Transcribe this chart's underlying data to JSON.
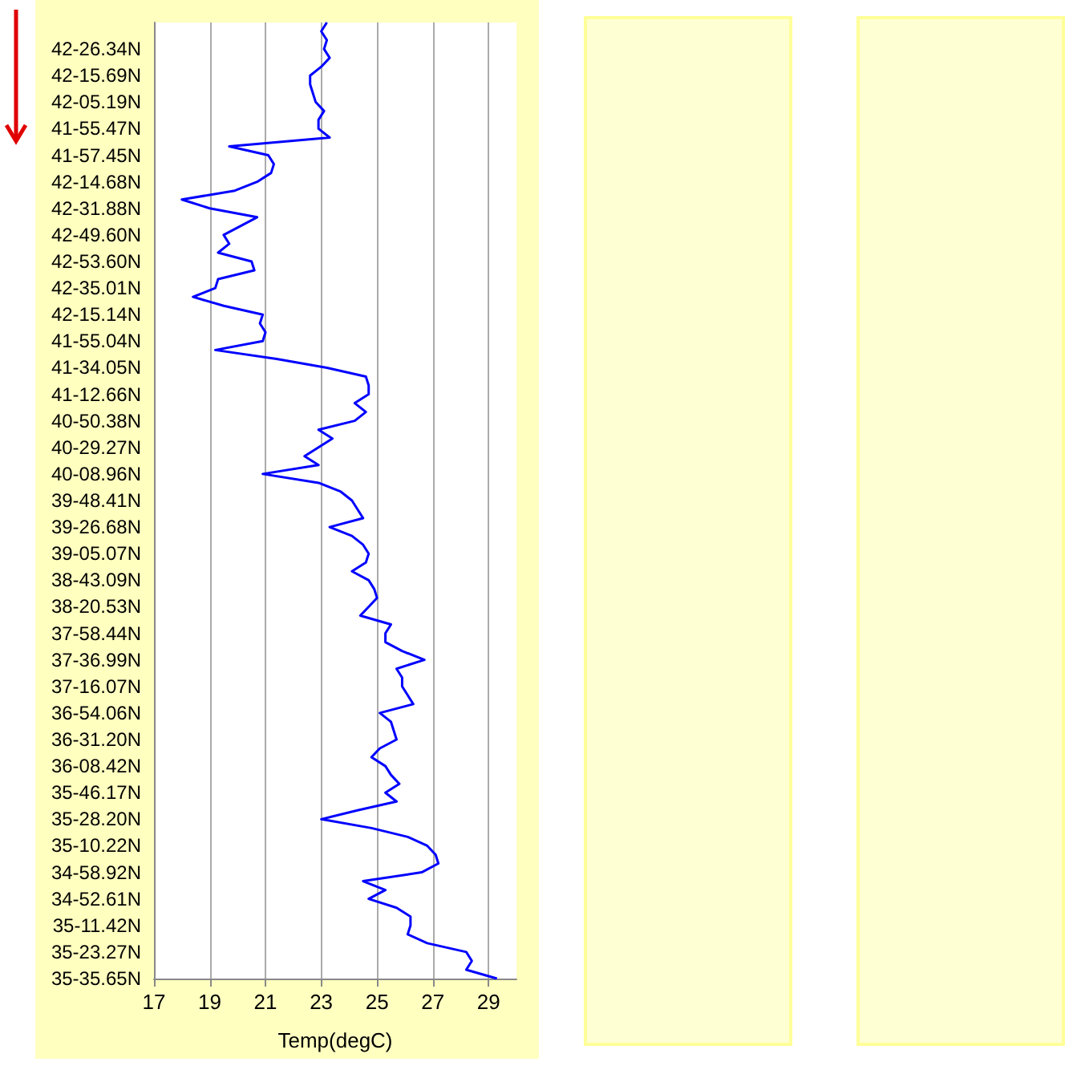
{
  "chart_data": {
    "type": "line",
    "orientation": "horizontal",
    "xlabel": "Temp(degC)",
    "categories": [
      null,
      null,
      null,
      "42-26.34N",
      null,
      null,
      "42-15.69N",
      null,
      null,
      "42-05.19N",
      null,
      null,
      "41-55.47N",
      null,
      null,
      "41-57.45N",
      null,
      null,
      "42-14.68N",
      null,
      null,
      "42-31.88N",
      null,
      null,
      "42-49.60N",
      null,
      null,
      "42-53.60N",
      null,
      null,
      "42-35.01N",
      null,
      null,
      "42-15.14N",
      null,
      null,
      "41-55.04N",
      null,
      null,
      "41-34.05N",
      null,
      null,
      "41-12.66N",
      null,
      null,
      "40-50.38N",
      null,
      null,
      "40-29.27N",
      null,
      null,
      "40-08.96N",
      null,
      null,
      "39-48.41N",
      null,
      null,
      "39-26.68N",
      null,
      null,
      "39-05.07N",
      null,
      null,
      "38-43.09N",
      null,
      null,
      "38-20.53N",
      null,
      null,
      "37-58.44N",
      null,
      null,
      "37-36.99N",
      null,
      null,
      "37-16.07N",
      null,
      null,
      "36-54.06N",
      null,
      null,
      "36-31.20N",
      null,
      null,
      "36-08.42N",
      null,
      null,
      "35-46.17N",
      null,
      null,
      "35-28.20N",
      null,
      null,
      "35-10.22N",
      null,
      null,
      "34-58.92N",
      null,
      null,
      "34-52.61N",
      null,
      null,
      "35-11.42N",
      null,
      null,
      "35-23.27N",
      null,
      null,
      "35-35.65N"
    ],
    "series": [
      {
        "color": "#0000ff",
        "values": [
          23.2,
          23.0,
          23.2,
          23.1,
          23.3,
          23.0,
          22.6,
          22.6,
          22.7,
          22.8,
          23.1,
          22.9,
          22.9,
          23.3,
          19.7,
          21.1,
          21.3,
          21.2,
          20.7,
          19.9,
          18.0,
          19.0,
          20.7,
          20.1,
          19.5,
          19.7,
          19.3,
          20.5,
          20.6,
          19.3,
          19.2,
          18.4,
          19.5,
          20.9,
          20.8,
          21.0,
          20.9,
          19.2,
          21.4,
          23.2,
          24.6,
          24.7,
          24.7,
          24.2,
          24.6,
          24.2,
          22.9,
          23.4,
          22.9,
          22.4,
          22.9,
          20.9,
          22.9,
          23.7,
          24.1,
          24.3,
          24.5,
          23.3,
          24.1,
          24.5,
          24.7,
          24.6,
          24.1,
          24.7,
          24.9,
          25.0,
          24.7,
          24.4,
          25.5,
          25.3,
          25.3,
          25.9,
          26.7,
          25.7,
          25.9,
          25.9,
          26.1,
          26.3,
          25.1,
          25.5,
          25.6,
          25.7,
          25.1,
          24.8,
          25.3,
          25.5,
          25.8,
          25.3,
          25.7,
          24.3,
          23.0,
          24.8,
          26.1,
          26.8,
          27.1,
          27.2,
          26.6,
          24.5,
          25.3,
          24.7,
          25.7,
          26.2,
          26.2,
          26.1,
          26.8,
          28.2,
          28.4,
          28.2,
          29.3
        ]
      }
    ],
    "xlim": [
      17,
      30
    ],
    "xticks": [
      17,
      19,
      21,
      23,
      25,
      27,
      29
    ],
    "grid": "x",
    "marker": "none",
    "line_style": "solid"
  }
}
